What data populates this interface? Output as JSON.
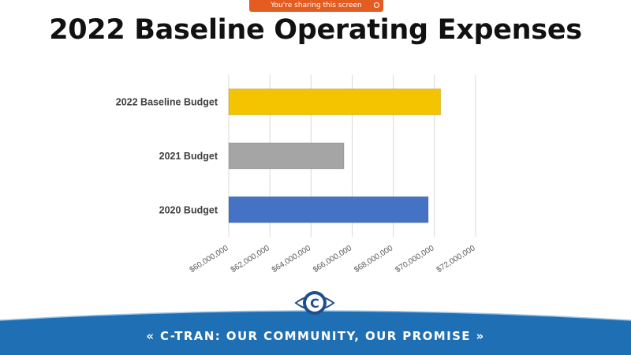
{
  "banner": {
    "text": "You're sharing this screen"
  },
  "slide": {
    "title": "2022 Baseline Operating Expenses"
  },
  "chart_data": {
    "type": "bar",
    "orientation": "horizontal",
    "title": "",
    "xlabel": "",
    "ylabel": "",
    "categories": [
      "2022 Baseline Budget",
      "2021 Budget",
      "2020 Budget"
    ],
    "values": [
      70300000,
      65600000,
      69700000
    ],
    "colors": [
      "#f5c400",
      "#a5a5a5",
      "#4472c4"
    ],
    "xlim": [
      60000000,
      72000000
    ],
    "ticks": [
      60000000,
      62000000,
      64000000,
      66000000,
      68000000,
      70000000,
      72000000
    ],
    "tick_labels": [
      "$60,000,000",
      "$62,000,000",
      "$64,000,000",
      "$66,000,000",
      "$68,000,000",
      "$70,000,000",
      "$72,000,000"
    ],
    "grid": true,
    "legend": "none"
  },
  "footer": {
    "text": "« C-TRAN: OUR COMMUNITY, OUR PROMISE »",
    "band_color": "#1f6fb5",
    "logo_letter": "C"
  }
}
